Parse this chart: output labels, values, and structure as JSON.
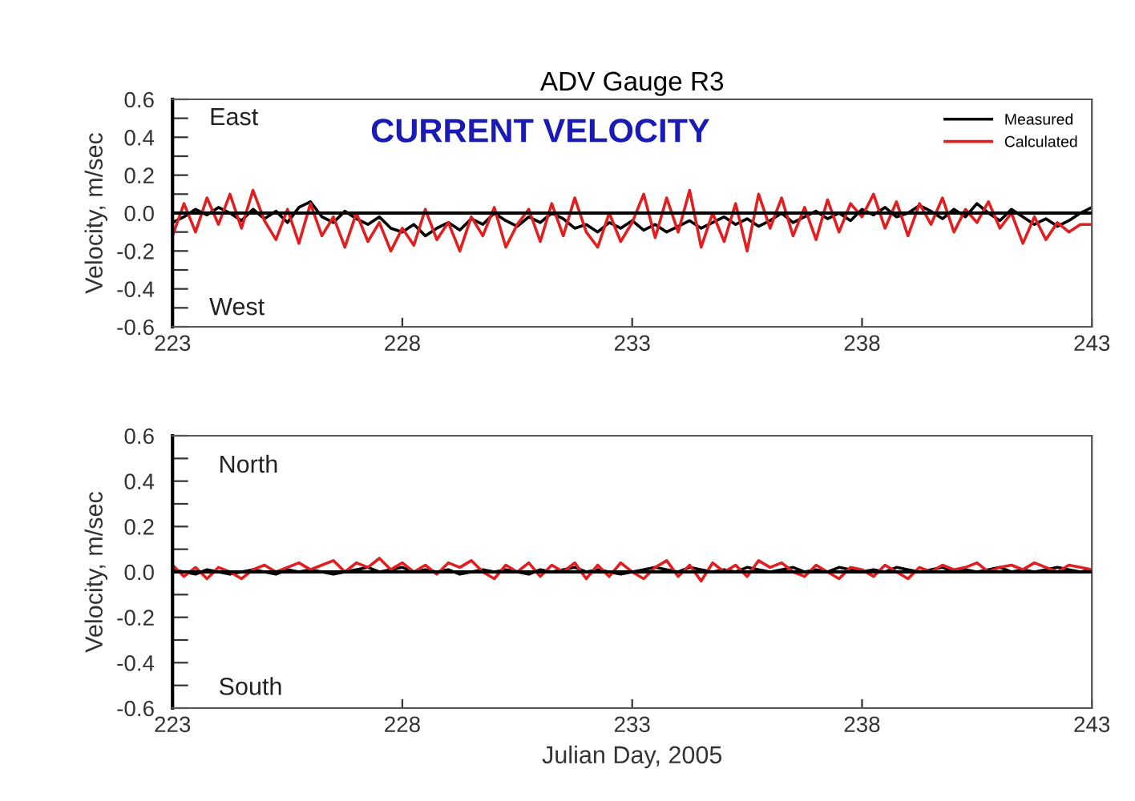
{
  "chart_data": [
    {
      "type": "line",
      "title": "ADV Gauge R3",
      "ylabel": "Velocity, m/sec",
      "annotations": [
        "East",
        "West",
        "CURRENT VELOCITY"
      ],
      "x": [
        223,
        223.25,
        223.5,
        223.75,
        224,
        224.25,
        224.5,
        224.75,
        225,
        225.25,
        225.5,
        225.75,
        226,
        226.25,
        226.5,
        226.75,
        227,
        227.25,
        227.5,
        227.75,
        228,
        228.25,
        228.5,
        228.75,
        229,
        229.25,
        229.5,
        229.75,
        230,
        230.25,
        230.5,
        230.75,
        231,
        231.25,
        231.5,
        231.75,
        232,
        232.25,
        232.5,
        232.75,
        233,
        233.25,
        233.5,
        233.75,
        234,
        234.25,
        234.5,
        234.75,
        235,
        235.25,
        235.5,
        235.75,
        236,
        236.25,
        236.5,
        236.75,
        237,
        237.25,
        237.5,
        237.75,
        238,
        238.25,
        238.5,
        238.75,
        239,
        239.25,
        239.5,
        239.75,
        240,
        240.25,
        240.5,
        240.75,
        241,
        241.25,
        241.5,
        241.75,
        242,
        242.25,
        242.5,
        242.75,
        243
      ],
      "series": [
        {
          "name": "Measured",
          "color": "#000000",
          "values": [
            -0.05,
            -0.02,
            0.02,
            -0.01,
            0.03,
            0.0,
            -0.04,
            0.02,
            -0.03,
            0.01,
            -0.05,
            0.03,
            0.06,
            -0.02,
            -0.05,
            0.01,
            -0.03,
            -0.06,
            -0.02,
            -0.08,
            -0.1,
            -0.06,
            -0.12,
            -0.08,
            -0.05,
            -0.09,
            -0.03,
            -0.06,
            0.0,
            -0.04,
            -0.07,
            -0.02,
            -0.05,
            0.0,
            -0.03,
            -0.08,
            -0.06,
            -0.1,
            -0.05,
            -0.08,
            -0.04,
            -0.09,
            -0.06,
            -0.1,
            -0.07,
            -0.04,
            -0.08,
            -0.05,
            -0.02,
            -0.06,
            -0.03,
            -0.07,
            -0.04,
            0.0,
            -0.05,
            -0.02,
            0.01,
            -0.03,
            0.0,
            -0.04,
            0.02,
            -0.01,
            0.03,
            -0.02,
            0.0,
            0.04,
            0.01,
            -0.03,
            0.02,
            -0.02,
            0.05,
            0.0,
            -0.04,
            0.02,
            -0.02,
            -0.06,
            -0.03,
            -0.07,
            -0.04,
            0.0,
            0.03
          ]
        },
        {
          "name": "Calculated",
          "color": "#e02020",
          "values": [
            -0.12,
            0.05,
            -0.1,
            0.08,
            -0.06,
            0.1,
            -0.08,
            0.12,
            -0.04,
            -0.14,
            0.02,
            -0.16,
            0.05,
            -0.12,
            -0.02,
            -0.18,
            0.0,
            -0.15,
            -0.05,
            -0.2,
            -0.08,
            -0.17,
            0.02,
            -0.14,
            -0.05,
            -0.2,
            -0.02,
            -0.12,
            0.03,
            -0.18,
            -0.06,
            0.02,
            -0.15,
            0.05,
            -0.12,
            0.08,
            -0.1,
            -0.18,
            0.0,
            -0.15,
            -0.05,
            0.1,
            -0.13,
            0.08,
            -0.1,
            0.12,
            -0.18,
            0.0,
            -0.15,
            0.05,
            -0.2,
            0.1,
            -0.08,
            0.08,
            -0.12,
            0.03,
            -0.14,
            0.07,
            -0.1,
            0.05,
            -0.02,
            0.1,
            -0.08,
            0.06,
            -0.12,
            0.05,
            -0.06,
            0.08,
            -0.1,
            0.02,
            -0.05,
            0.06,
            -0.08,
            0.0,
            -0.16,
            -0.02,
            -0.14,
            -0.05,
            -0.1,
            -0.06,
            -0.06
          ]
        }
      ],
      "xlim": [
        223,
        243
      ],
      "xticks": [
        223,
        228,
        233,
        238,
        243
      ],
      "ylim": [
        -0.6,
        0.6
      ],
      "yticks": [
        {
          "value": -0.6,
          "label": "-0.6"
        },
        {
          "value": -0.5,
          "label": null
        },
        {
          "value": -0.4,
          "label": "-0.4"
        },
        {
          "value": -0.3,
          "label": null
        },
        {
          "value": -0.2,
          "label": "-0.2"
        },
        {
          "value": -0.1,
          "label": null
        },
        {
          "value": 0,
          "label": "0.0"
        },
        {
          "value": 0.1,
          "label": null
        },
        {
          "value": 0.2,
          "label": "0.2"
        },
        {
          "value": 0.3,
          "label": null
        },
        {
          "value": 0.4,
          "label": "0.4"
        },
        {
          "value": 0.5,
          "label": null
        },
        {
          "value": 0.6,
          "label": "0.6"
        }
      ],
      "ref_lines": [
        {
          "axis": "y",
          "value": 0,
          "color": "#000000"
        }
      ],
      "legend": "top right",
      "grid": false,
      "marker": "none",
      "line_style": "solid"
    },
    {
      "type": "line",
      "ylabel": "Velocity, m/sec",
      "xlabel": "Julian Day, 2005",
      "annotations": [
        "North",
        "South"
      ],
      "x": [
        223,
        223.25,
        223.5,
        223.75,
        224,
        224.25,
        224.5,
        224.75,
        225,
        225.25,
        225.5,
        225.75,
        226,
        226.25,
        226.5,
        226.75,
        227,
        227.25,
        227.5,
        227.75,
        228,
        228.25,
        228.5,
        228.75,
        229,
        229.25,
        229.5,
        229.75,
        230,
        230.25,
        230.5,
        230.75,
        231,
        231.25,
        231.5,
        231.75,
        232,
        232.25,
        232.5,
        232.75,
        233,
        233.25,
        233.5,
        233.75,
        234,
        234.25,
        234.5,
        234.75,
        235,
        235.25,
        235.5,
        235.75,
        236,
        236.25,
        236.5,
        236.75,
        237,
        237.25,
        237.5,
        237.75,
        238,
        238.25,
        238.5,
        238.75,
        239,
        239.25,
        239.5,
        239.75,
        240,
        240.25,
        240.5,
        240.75,
        241,
        241.25,
        241.5,
        241.75,
        242,
        242.25,
        242.5,
        242.75,
        243
      ],
      "series": [
        {
          "color": "#000000",
          "values": [
            0.01,
            0.0,
            -0.01,
            0.01,
            0.0,
            -0.01,
            0.0,
            0.01,
            0.0,
            -0.01,
            0.01,
            0.0,
            0.01,
            0.0,
            -0.01,
            0.0,
            0.01,
            0.02,
            0.0,
            0.01,
            0.02,
            0.0,
            0.01,
            0.0,
            0.01,
            -0.01,
            0.0,
            0.01,
            0.0,
            0.01,
            0.0,
            -0.01,
            0.01,
            0.0,
            0.01,
            0.02,
            0.0,
            0.01,
            0.0,
            -0.01,
            0.0,
            0.01,
            0.02,
            0.01,
            0.0,
            0.02,
            0.01,
            0.0,
            0.01,
            0.0,
            0.02,
            0.01,
            0.0,
            0.01,
            0.02,
            0.0,
            0.01,
            0.0,
            0.02,
            0.01,
            0.0,
            0.01,
            0.0,
            0.02,
            0.01,
            0.0,
            0.01,
            0.02,
            0.0,
            0.01,
            0.0,
            0.01,
            0.02,
            0.0,
            0.01,
            0.0,
            0.01,
            0.02,
            0.01,
            0.0,
            0.01
          ]
        },
        {
          "color": "#e02020",
          "values": [
            0.03,
            -0.02,
            0.02,
            -0.03,
            0.02,
            0.0,
            -0.03,
            0.01,
            0.03,
            0.0,
            0.02,
            0.04,
            0.01,
            0.03,
            0.05,
            0.0,
            0.04,
            0.02,
            0.06,
            0.01,
            0.04,
            0.0,
            0.03,
            -0.01,
            0.04,
            0.02,
            0.05,
            0.0,
            -0.03,
            0.03,
            0.0,
            0.04,
            -0.02,
            0.03,
            0.0,
            0.04,
            -0.03,
            0.03,
            -0.02,
            0.04,
            0.0,
            -0.03,
            0.02,
            0.05,
            -0.02,
            0.03,
            -0.04,
            0.04,
            0.0,
            0.03,
            -0.02,
            0.05,
            0.02,
            0.04,
            0.0,
            -0.02,
            0.03,
            0.0,
            -0.03,
            0.02,
            0.01,
            -0.02,
            0.03,
            0.0,
            -0.03,
            0.02,
            0.0,
            0.03,
            0.01,
            0.02,
            0.04,
            0.0,
            0.02,
            0.03,
            0.01,
            0.04,
            0.02,
            0.0,
            0.03,
            0.02,
            0.01
          ]
        }
      ],
      "xlim": [
        223,
        243
      ],
      "xticks": [
        223,
        228,
        233,
        238,
        243
      ],
      "ylim": [
        -0.6,
        0.6
      ],
      "yticks": [
        {
          "value": -0.6,
          "label": "-0.6"
        },
        {
          "value": -0.5,
          "label": null
        },
        {
          "value": -0.4,
          "label": "-0.4"
        },
        {
          "value": -0.3,
          "label": null
        },
        {
          "value": -0.2,
          "label": "-0.2"
        },
        {
          "value": -0.1,
          "label": null
        },
        {
          "value": 0,
          "label": "0.0"
        },
        {
          "value": 0.1,
          "label": null
        },
        {
          "value": 0.2,
          "label": "0.2"
        },
        {
          "value": 0.3,
          "label": null
        },
        {
          "value": 0.4,
          "label": "0.4"
        },
        {
          "value": 0.5,
          "label": null
        },
        {
          "value": 0.6,
          "label": "0.6"
        }
      ],
      "ref_lines": [
        {
          "axis": "y",
          "value": 0,
          "color": "#000000"
        }
      ],
      "legend": false,
      "grid": false,
      "marker": "none",
      "line_style": "solid"
    }
  ]
}
